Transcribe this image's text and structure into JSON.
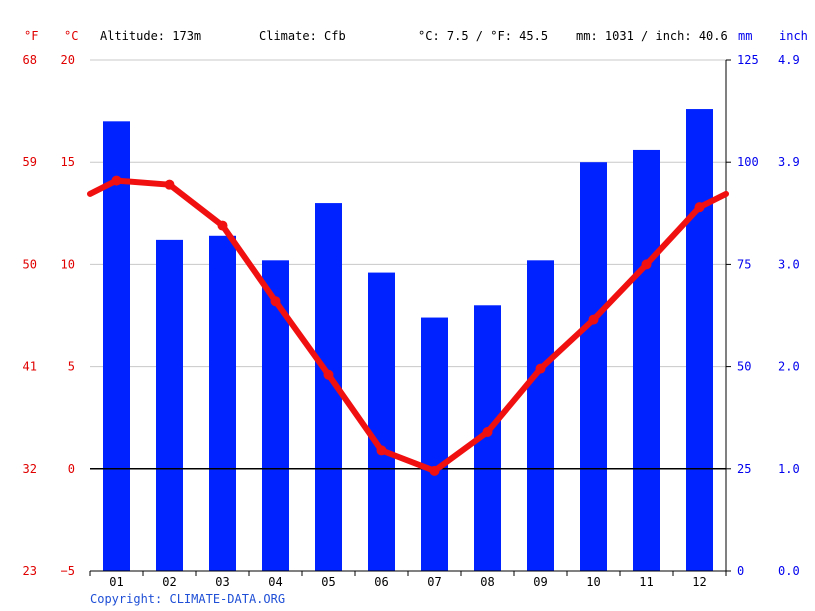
{
  "header": {
    "f_unit": "°F",
    "c_unit": "°C",
    "altitude": "Altitude: 173m",
    "climate": "Climate: Cfb",
    "temp_summary": "°C: 7.5 / °F: 45.5",
    "precip_summary": "mm: 1031 / inch: 40.6",
    "mm_unit": "mm",
    "inch_unit": "inch"
  },
  "colors": {
    "temperature": "#f01010",
    "precipitation": "#0022ff",
    "grid": "#c8c8c8",
    "zero_line": "#000000"
  },
  "copyright": "Copyright: CLIMATE-DATA.ORG",
  "chart_data": {
    "type": "bar",
    "categories": [
      "01",
      "02",
      "03",
      "04",
      "05",
      "06",
      "07",
      "08",
      "09",
      "10",
      "11",
      "12"
    ],
    "series": [
      {
        "type": "bar",
        "axis": "right",
        "unit": "mm",
        "color": "#0022ff",
        "values": [
          110,
          81,
          82,
          76,
          90,
          73,
          62,
          65,
          76,
          100,
          103,
          113
        ]
      },
      {
        "type": "line",
        "axis": "left",
        "unit": "°C",
        "color": "#f01010",
        "values": [
          14.1,
          13.9,
          11.9,
          8.2,
          4.6,
          0.9,
          -0.1,
          1.8,
          4.9,
          7.3,
          10.0,
          12.8
        ]
      }
    ],
    "y_left_celsius": {
      "ticks": [
        "20",
        "15",
        "10",
        "5",
        "0",
        "−5"
      ],
      "ylim": [
        -5,
        20
      ]
    },
    "y_left_fahrenheit": {
      "ticks": [
        "68",
        "59",
        "50",
        "41",
        "32",
        "23"
      ]
    },
    "y_right_mm": {
      "ticks": [
        "125",
        "100",
        "75",
        "50",
        "25",
        "0"
      ],
      "ylim": [
        0,
        125
      ]
    },
    "y_right_inch": {
      "ticks": [
        "4.9",
        "3.9",
        "3.0",
        "2.0",
        "1.0",
        "0.0"
      ]
    },
    "grid": true
  }
}
